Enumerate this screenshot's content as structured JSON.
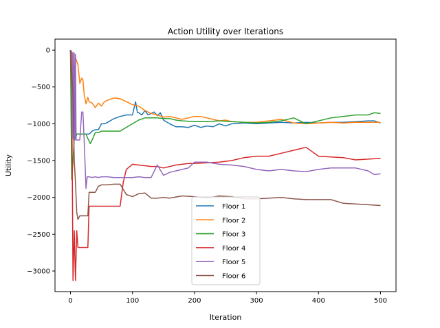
{
  "chart_data": {
    "type": "line",
    "title": "Action Utility over Iterations",
    "xlabel": "Iteration",
    "ylabel": "Utility",
    "xlim": [
      -25,
      525
    ],
    "ylim": [
      -3280,
      150
    ],
    "xticks": [
      0,
      100,
      200,
      300,
      400,
      500
    ],
    "yticks": [
      0,
      -500,
      -1000,
      -1500,
      -2000,
      -2500,
      -3000
    ],
    "xtick_labels": [
      "0",
      "100",
      "200",
      "300",
      "400",
      "500"
    ],
    "ytick_labels": [
      "0",
      "−500",
      "−1000",
      "−1500",
      "−2000",
      "−2500",
      "−3000"
    ],
    "grid": false,
    "legend_position": "lower-center",
    "series": [
      {
        "name": "Floor 1",
        "color": "#1f77b4",
        "x": [
          0,
          2,
          4,
          6,
          8,
          10,
          12,
          15,
          20,
          25,
          30,
          35,
          40,
          45,
          50,
          55,
          60,
          70,
          80,
          90,
          100,
          105,
          108,
          110,
          115,
          120,
          125,
          130,
          135,
          140,
          145,
          150,
          160,
          170,
          180,
          190,
          200,
          210,
          220,
          230,
          240,
          250,
          260,
          280,
          300,
          320,
          340,
          360,
          380,
          400,
          420,
          440,
          460,
          480,
          490,
          500
        ],
        "y": [
          0,
          -100,
          -300,
          -800,
          -1200,
          -1140,
          -1140,
          -1140,
          -1140,
          -1140,
          -1140,
          -1100,
          -1080,
          -1080,
          -1000,
          -1000,
          -980,
          -930,
          -900,
          -880,
          -880,
          -700,
          -850,
          -850,
          -880,
          -820,
          -880,
          -860,
          -840,
          -890,
          -850,
          -950,
          -1000,
          -1040,
          -1040,
          -1050,
          -1020,
          -1050,
          -1030,
          -1040,
          -1000,
          -1030,
          -1000,
          -990,
          -1000,
          -990,
          -980,
          -990,
          -980,
          -990,
          -980,
          -980,
          -970,
          -960,
          -960,
          -990
        ]
      },
      {
        "name": "Floor 2",
        "color": "#ff7f0e",
        "x": [
          0,
          3,
          5,
          8,
          10,
          12,
          15,
          18,
          20,
          22,
          25,
          28,
          30,
          35,
          40,
          45,
          50,
          55,
          60,
          70,
          80,
          90,
          100,
          110,
          120,
          130,
          140,
          150,
          160,
          170,
          180,
          190,
          200,
          210,
          220,
          230,
          240,
          250,
          260,
          280,
          300,
          320,
          340,
          360,
          380,
          400,
          420,
          440,
          460,
          480,
          500
        ],
        "y": [
          0,
          -50,
          -1200,
          -100,
          -150,
          -200,
          -450,
          -380,
          -400,
          -600,
          -730,
          -640,
          -700,
          -720,
          -780,
          -720,
          -760,
          -700,
          -680,
          -650,
          -660,
          -700,
          -740,
          -760,
          -820,
          -860,
          -880,
          -910,
          -900,
          -920,
          -940,
          -920,
          -900,
          -900,
          -920,
          -940,
          -960,
          -950,
          -970,
          -980,
          -980,
          -960,
          -940,
          -990,
          -1000,
          -990,
          -980,
          -990,
          -980,
          -980,
          -980
        ]
      },
      {
        "name": "Floor 3",
        "color": "#2ca02c",
        "x": [
          0,
          2,
          4,
          6,
          8,
          10,
          15,
          20,
          25,
          28,
          32,
          36,
          40,
          45,
          50,
          60,
          70,
          80,
          90,
          100,
          110,
          120,
          130,
          140,
          150,
          160,
          170,
          180,
          200,
          220,
          240,
          260,
          280,
          300,
          320,
          340,
          360,
          370,
          380,
          390,
          400,
          420,
          440,
          460,
          480,
          490,
          500
        ],
        "y": [
          0,
          -1760,
          -1500,
          -1200,
          -1150,
          -1140,
          -1140,
          -1140,
          -1140,
          -1200,
          -1270,
          -1200,
          -1120,
          -1120,
          -1100,
          -1100,
          -1100,
          -1100,
          -1050,
          -1000,
          -950,
          -920,
          -920,
          -920,
          -930,
          -930,
          -950,
          -960,
          -970,
          -970,
          -960,
          -970,
          -980,
          -990,
          -980,
          -960,
          -920,
          -960,
          -1000,
          -980,
          -960,
          -920,
          -900,
          -880,
          -880,
          -850,
          -860
        ]
      },
      {
        "name": "Floor 4",
        "color": "#d62728",
        "x": [
          0,
          2,
          4,
          6,
          8,
          10,
          12,
          15,
          20,
          25,
          28,
          30,
          40,
          50,
          60,
          70,
          80,
          85,
          90,
          100,
          110,
          120,
          130,
          140,
          150,
          160,
          170,
          180,
          190,
          200,
          220,
          240,
          260,
          280,
          300,
          320,
          340,
          360,
          380,
          400,
          420,
          440,
          460,
          480,
          500
        ],
        "y": [
          0,
          -500,
          -3130,
          -2450,
          -3130,
          -2450,
          -2680,
          -2680,
          -2680,
          -2680,
          -2680,
          -2120,
          -2120,
          -2120,
          -2120,
          -2120,
          -2120,
          -1800,
          -1620,
          -1550,
          -1560,
          -1570,
          -1580,
          -1580,
          -1600,
          -1580,
          -1560,
          -1550,
          -1540,
          -1540,
          -1530,
          -1520,
          -1500,
          -1460,
          -1440,
          -1440,
          -1400,
          -1360,
          -1320,
          -1440,
          -1450,
          -1460,
          -1490,
          -1480,
          -1470
        ]
      },
      {
        "name": "Floor 5",
        "color": "#9467bd",
        "x": [
          0,
          2,
          3,
          4,
          5,
          6,
          7,
          8,
          9,
          10,
          12,
          15,
          18,
          20,
          22,
          25,
          27,
          30,
          35,
          40,
          45,
          50,
          55,
          60,
          70,
          80,
          90,
          100,
          110,
          120,
          130,
          140,
          150,
          160,
          170,
          180,
          190,
          200,
          220,
          240,
          260,
          280,
          300,
          320,
          340,
          360,
          380,
          400,
          420,
          440,
          460,
          480,
          490,
          500
        ],
        "y": [
          0,
          -20,
          -1200,
          -30,
          -1220,
          -40,
          -1220,
          -60,
          -1220,
          -1220,
          -1220,
          -1220,
          -840,
          -840,
          -1220,
          -1880,
          -1720,
          -1720,
          -1730,
          -1720,
          -1730,
          -1720,
          -1720,
          -1720,
          -1730,
          -1730,
          -1730,
          -1730,
          -1720,
          -1730,
          -1730,
          -1560,
          -1700,
          -1660,
          -1640,
          -1620,
          -1600,
          -1520,
          -1520,
          -1550,
          -1560,
          -1580,
          -1620,
          -1640,
          -1620,
          -1640,
          -1650,
          -1620,
          -1600,
          -1600,
          -1600,
          -1640,
          -1690,
          -1680
        ]
      },
      {
        "name": "Floor 6",
        "color": "#8c564b",
        "x": [
          0,
          2,
          4,
          6,
          8,
          10,
          12,
          15,
          20,
          25,
          28,
          30,
          35,
          40,
          45,
          50,
          60,
          70,
          80,
          90,
          100,
          110,
          120,
          130,
          140,
          150,
          160,
          180,
          200,
          220,
          240,
          260,
          280,
          300,
          320,
          340,
          360,
          380,
          400,
          420,
          440,
          460,
          480,
          500
        ],
        "y": [
          0,
          -300,
          -600,
          -1500,
          -1800,
          -2200,
          -2300,
          -2250,
          -2250,
          -2250,
          -2250,
          -1930,
          -1930,
          -1930,
          -1850,
          -1830,
          -1830,
          -1820,
          -1820,
          -1960,
          -1990,
          -1950,
          -1940,
          -2010,
          -2010,
          -2000,
          -2010,
          -1980,
          -1990,
          -2010,
          -1980,
          -1990,
          -2020,
          -2020,
          -2010,
          -2000,
          -2020,
          -2030,
          -2030,
          -2030,
          -2080,
          -2090,
          -2100,
          -2110
        ]
      }
    ]
  }
}
